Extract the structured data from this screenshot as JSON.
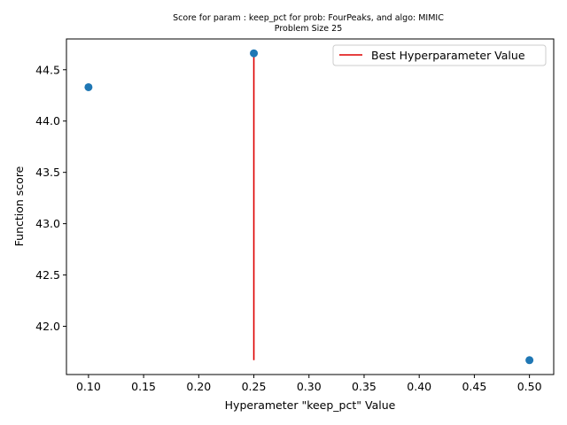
{
  "chart_data": {
    "type": "scatter",
    "title": "Score for param : keep_pct for prob: FourPeaks, and algo: MIMIC",
    "subtitle": "Problem Size 25",
    "xlabel": "Hyperameter \"keep_pct\" Value",
    "ylabel": "Function score",
    "xlim": [
      0.08,
      0.522
    ],
    "ylim": [
      41.53,
      44.8
    ],
    "x_ticks": [
      0.1,
      0.15,
      0.2,
      0.25,
      0.3,
      0.35,
      0.4,
      0.45,
      0.5
    ],
    "x_tick_labels": [
      "0.10",
      "0.15",
      "0.20",
      "0.25",
      "0.30",
      "0.35",
      "0.40",
      "0.45",
      "0.50"
    ],
    "y_ticks": [
      42.0,
      42.5,
      43.0,
      43.5,
      44.0,
      44.5
    ],
    "y_tick_labels": [
      "42.0",
      "42.5",
      "43.0",
      "43.5",
      "44.0",
      "44.5"
    ],
    "grid": false,
    "legend_position": "top-right",
    "series": [
      {
        "kind": "scatter",
        "color": "#1f77b4",
        "x": [
          0.1,
          0.25,
          0.5
        ],
        "y": [
          44.33,
          44.66,
          41.67
        ]
      },
      {
        "kind": "vline",
        "name": "Best Hyperparameter Value",
        "color": "#dd0000",
        "x": 0.25,
        "ymin": 41.67,
        "ymax": 44.66
      }
    ]
  }
}
